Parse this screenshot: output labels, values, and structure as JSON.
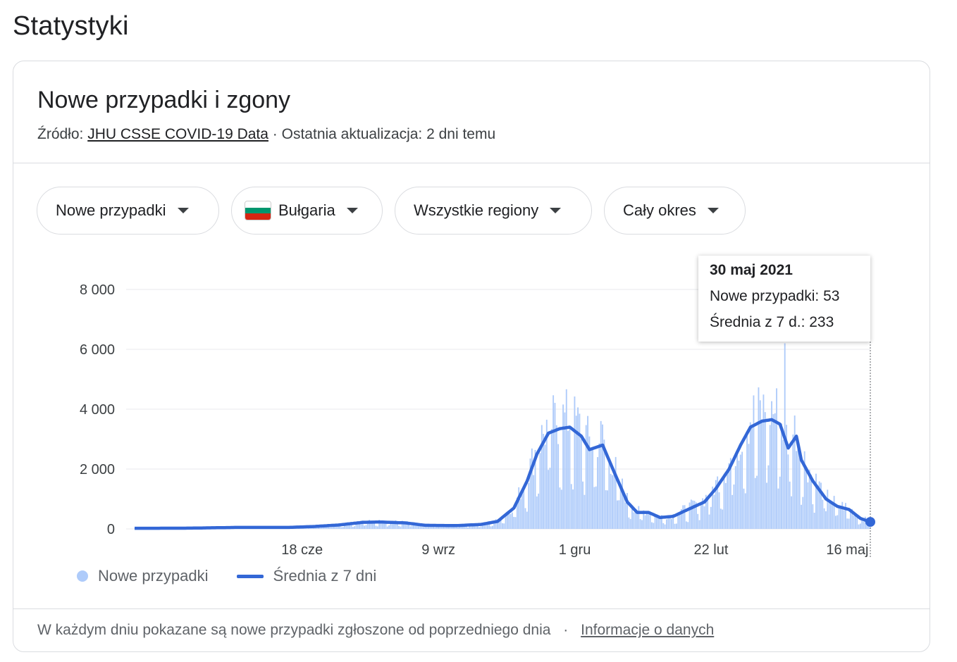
{
  "page": {
    "title": "Statystyki"
  },
  "card": {
    "title": "Nowe przypadki i zgony",
    "source_prefix": "Źródło:",
    "source_link": "JHU CSSE COVID-19 Data",
    "source_sep": "·",
    "updated": "Ostatnia aktualizacja: 2 dni temu"
  },
  "filters": {
    "metric": "Nowe przypadki",
    "country": "Bułgaria",
    "region": "Wszystkie regiony",
    "period": "Cały okres",
    "flag_colors": [
      "#ffffff",
      "#00966e",
      "#d62612"
    ]
  },
  "tooltip": {
    "date": "30 maj 2021",
    "cases_line": "Nowe przypadki: 53",
    "avg_line": "Średnia z 7 d.: 233"
  },
  "legend": {
    "bars": "Nowe przypadki",
    "line": "Średnia z 7 dni"
  },
  "footer": {
    "text": "W każdym dniu pokazane są nowe przypadki zgłoszone od poprzedniego dnia",
    "sep": "·",
    "link": "Informacje o danych"
  },
  "colors": {
    "bar": "#aecbfa",
    "line": "#3367d6",
    "grid": "#e8eaed"
  },
  "chart_data": {
    "type": "bar",
    "ylim": [
      0,
      8000
    ],
    "yticks": [
      0,
      2000,
      4000,
      6000,
      8000
    ],
    "ytick_labels": [
      "0",
      "2 000",
      "4 000",
      "6 000",
      "8 000"
    ],
    "xtick_labels": [
      "18 cze",
      "9 wrz",
      "1 gru",
      "22 lut",
      "16 maj"
    ],
    "xtick_dates": [
      "2020-06-18",
      "2020-09-09",
      "2020-12-01",
      "2021-02-22",
      "2021-05-16"
    ],
    "x_start": "2020-03-08",
    "x_end": "2021-05-30",
    "series": [
      {
        "name": "Nowe przypadki",
        "kind": "bar"
      },
      {
        "name": "Średnia z 7 dni",
        "kind": "line"
      }
    ],
    "avg_points": [
      [
        "2020-03-08",
        20
      ],
      [
        "2020-04-10",
        25
      ],
      [
        "2020-05-10",
        50
      ],
      [
        "2020-06-10",
        50
      ],
      [
        "2020-06-25",
        80
      ],
      [
        "2020-07-10",
        130
      ],
      [
        "2020-07-25",
        220
      ],
      [
        "2020-08-05",
        230
      ],
      [
        "2020-08-20",
        200
      ],
      [
        "2020-09-01",
        120
      ],
      [
        "2020-09-20",
        110
      ],
      [
        "2020-10-05",
        150
      ],
      [
        "2020-10-15",
        250
      ],
      [
        "2020-10-25",
        700
      ],
      [
        "2020-11-02",
        1600
      ],
      [
        "2020-11-08",
        2500
      ],
      [
        "2020-11-15",
        3200
      ],
      [
        "2020-11-22",
        3350
      ],
      [
        "2020-11-28",
        3400
      ],
      [
        "2020-12-05",
        3100
      ],
      [
        "2020-12-10",
        2650
      ],
      [
        "2020-12-18",
        2800
      ],
      [
        "2020-12-25",
        1900
      ],
      [
        "2021-01-02",
        900
      ],
      [
        "2021-01-08",
        550
      ],
      [
        "2021-01-15",
        550
      ],
      [
        "2021-01-22",
        380
      ],
      [
        "2021-01-30",
        420
      ],
      [
        "2021-02-08",
        650
      ],
      [
        "2021-02-18",
        900
      ],
      [
        "2021-02-25",
        1350
      ],
      [
        "2021-03-05",
        2000
      ],
      [
        "2021-03-12",
        2800
      ],
      [
        "2021-03-18",
        3400
      ],
      [
        "2021-03-25",
        3600
      ],
      [
        "2021-03-31",
        3650
      ],
      [
        "2021-04-05",
        3500
      ],
      [
        "2021-04-10",
        2700
      ],
      [
        "2021-04-15",
        3100
      ],
      [
        "2021-04-18",
        2300
      ],
      [
        "2021-04-25",
        1600
      ],
      [
        "2021-05-03",
        1000
      ],
      [
        "2021-05-10",
        750
      ],
      [
        "2021-05-17",
        650
      ],
      [
        "2021-05-24",
        350
      ],
      [
        "2021-05-30",
        233
      ]
    ],
    "last_point": {
      "date": "2021-05-30",
      "cases": 53,
      "avg": 233
    }
  }
}
